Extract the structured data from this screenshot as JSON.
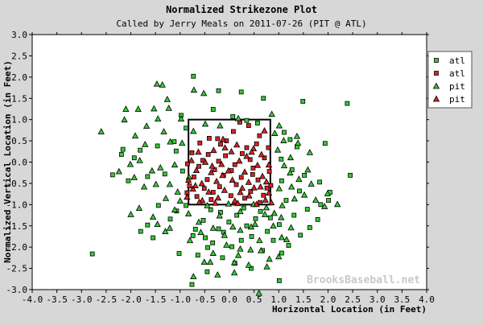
{
  "chart_data": {
    "type": "scatter",
    "title": "Normalized Strikezone Plot",
    "subtitle": "Called by Jerry Meals on 2011-07-26 (PIT @ ATL)",
    "xlabel": "Horizontal Location (in Feet)",
    "ylabel": "Normalized Vertical Location (in Feet)",
    "xlim": [
      -4.0,
      4.0
    ],
    "ylim": [
      -3.0,
      3.0
    ],
    "x_ticks": [
      "-4.0",
      "-3.5",
      "-3.0",
      "-2.5",
      "-2.0",
      "-1.5",
      "-1.0",
      "-0.5",
      "0.0",
      "0.5",
      "1.0",
      "1.5",
      "2.0",
      "2.5",
      "3.0",
      "3.5",
      "4.0"
    ],
    "y_ticks": [
      "3.0",
      "2.5",
      "2.0",
      "1.5",
      "1.0",
      "0.5",
      "0.0",
      "-0.5",
      "-1.0",
      "-1.5",
      "-2.0",
      "-2.5",
      "-3.0"
    ],
    "grid": false,
    "legend_position": "top-right",
    "watermark": "BrooksBaseball.net",
    "strike_zone": {
      "x": [
        -0.83,
        0.83
      ],
      "y": [
        -1.0,
        1.0
      ]
    },
    "colors": {
      "green": "#33cc33",
      "red": "#dd2222",
      "edge": "#000000",
      "plot_bg": "#ffffff",
      "page_bg": "#d7d7d7"
    },
    "series": [
      {
        "name": "atl",
        "marker": "square",
        "color": "#33cc33",
        "points": [
          [
            -0.73,
            2.02
          ],
          [
            -0.22,
            1.68
          ],
          [
            0.24,
            1.65
          ],
          [
            0.69,
            1.5
          ],
          [
            1.49,
            1.43
          ],
          [
            2.39,
            1.38
          ],
          [
            -0.98,
            1.1
          ],
          [
            -0.33,
            1.24
          ],
          [
            0.07,
            1.07
          ],
          [
            0.35,
            0.98
          ],
          [
            0.57,
            0.92
          ],
          [
            1.11,
            0.7
          ],
          [
            1.23,
            0.53
          ],
          [
            1.37,
            0.36
          ],
          [
            1.94,
            0.44
          ],
          [
            -1.46,
            0.38
          ],
          [
            -1.81,
            0.28
          ],
          [
            -2.16,
            0.3
          ],
          [
            -1.12,
            0.48
          ],
          [
            -0.88,
            0.8
          ],
          [
            -1.08,
            0.26
          ],
          [
            -0.95,
            -0.21
          ],
          [
            -1.31,
            -0.28
          ],
          [
            -1.66,
            -0.34
          ],
          [
            -2.05,
            -0.44
          ],
          [
            -2.37,
            -0.3
          ],
          [
            -1.93,
            0.1
          ],
          [
            -2.19,
            0.18
          ],
          [
            1.05,
            0.07
          ],
          [
            1.27,
            -0.18
          ],
          [
            1.52,
            -0.31
          ],
          [
            1.83,
            -0.47
          ],
          [
            2.04,
            -0.71
          ],
          [
            2.45,
            -0.31
          ],
          [
            1.42,
            -0.68
          ],
          [
            1.06,
            -0.44
          ],
          [
            1.15,
            -0.9
          ],
          [
            1.31,
            -1.25
          ],
          [
            1.58,
            -1.11
          ],
          [
            1.85,
            -1.0
          ],
          [
            2.01,
            -0.9
          ],
          [
            1.79,
            -1.35
          ],
          [
            1.63,
            -1.54
          ],
          [
            1.44,
            -1.72
          ],
          [
            1.2,
            -1.96
          ],
          [
            1.06,
            -2.14
          ],
          [
            0.77,
            -1.63
          ],
          [
            0.63,
            -1.16
          ],
          [
            0.53,
            -1.33
          ],
          [
            0.35,
            -1.5
          ],
          [
            0.15,
            -1.25
          ],
          [
            -0.01,
            -1.41
          ],
          [
            -0.18,
            -1.18
          ],
          [
            -0.38,
            -1.12
          ],
          [
            -0.53,
            -1.37
          ],
          [
            -0.69,
            -1.58
          ],
          [
            -0.88,
            -1.02
          ],
          [
            -1.07,
            -1.15
          ],
          [
            -1.2,
            -1.34
          ],
          [
            -1.44,
            -1.02
          ],
          [
            -1.66,
            -1.48
          ],
          [
            -1.8,
            -1.63
          ],
          [
            -0.74,
            -1.73
          ],
          [
            -0.49,
            -1.78
          ],
          [
            -0.34,
            -1.9
          ],
          [
            -0.12,
            -1.65
          ],
          [
            0.05,
            -1.99
          ],
          [
            0.24,
            -1.84
          ],
          [
            0.45,
            -1.75
          ],
          [
            0.67,
            -2.08
          ],
          [
            0.89,
            -1.84
          ],
          [
            1.01,
            -1.47
          ],
          [
            0.83,
            -1.31
          ],
          [
            0.29,
            -1.08
          ],
          [
            -0.22,
            -1.57
          ],
          [
            -0.64,
            -2.19
          ],
          [
            -0.45,
            -2.58
          ],
          [
            -0.14,
            -2.25
          ],
          [
            0.11,
            -2.38
          ],
          [
            0.44,
            -2.5
          ],
          [
            1.01,
            -2.79
          ],
          [
            -0.76,
            -2.88
          ],
          [
            -2.78,
            -2.16
          ],
          [
            -1.55,
            -1.78
          ],
          [
            -1.02,
            -2.15
          ],
          [
            -0.44,
            -2.01
          ]
        ]
      },
      {
        "name": "atl",
        "marker": "square",
        "color": "#dd2222",
        "points": [
          [
            0.21,
            0.94
          ],
          [
            0.39,
            0.86
          ],
          [
            0.61,
            0.62
          ],
          [
            -0.41,
            0.56
          ],
          [
            -0.24,
            0.55
          ],
          [
            0.08,
            0.72
          ],
          [
            -0.6,
            0.45
          ],
          [
            -0.18,
            0.42
          ],
          [
            0.35,
            0.34
          ],
          [
            0.79,
            0.34
          ],
          [
            -0.76,
            0.22
          ],
          [
            -0.43,
            0.18
          ],
          [
            -0.08,
            0.15
          ],
          [
            0.42,
            0.06
          ],
          [
            0.71,
            0.1
          ],
          [
            -0.85,
            -0.04
          ],
          [
            -0.62,
            -0.1
          ],
          [
            -0.22,
            0.02
          ],
          [
            0.11,
            -0.06
          ],
          [
            0.48,
            -0.14
          ],
          [
            0.81,
            -0.22
          ],
          [
            -0.72,
            -0.35
          ],
          [
            -0.45,
            -0.41
          ],
          [
            -0.12,
            -0.31
          ],
          [
            0.24,
            -0.36
          ],
          [
            0.58,
            -0.42
          ],
          [
            -0.81,
            -0.56
          ],
          [
            -0.51,
            -0.62
          ],
          [
            -0.2,
            -0.58
          ],
          [
            0.14,
            -0.53
          ],
          [
            0.43,
            -0.69
          ],
          [
            0.69,
            -0.78
          ],
          [
            -0.66,
            -0.81
          ],
          [
            -0.37,
            -0.88
          ],
          [
            0.03,
            -0.79
          ],
          [
            0.31,
            -0.85
          ],
          [
            0.62,
            -0.95
          ],
          [
            -0.86,
            -0.72
          ],
          [
            0.84,
            -0.55
          ],
          [
            -0.3,
            -0.18
          ],
          [
            0.26,
            0.2
          ],
          [
            -0.54,
            0.04
          ],
          [
            0.55,
            0.43
          ],
          [
            -0.06,
            0.5
          ],
          [
            0.04,
            -0.2
          ],
          [
            -0.33,
            -0.71
          ],
          [
            0.47,
            -0.29
          ],
          [
            0.76,
            -0.61
          ]
        ]
      },
      {
        "name": "pit",
        "marker": "triangle",
        "color": "#33cc33",
        "points": [
          [
            -1.47,
            1.84
          ],
          [
            -1.36,
            1.82
          ],
          [
            -0.72,
            1.7
          ],
          [
            -1.26,
            1.48
          ],
          [
            -2.1,
            1.25
          ],
          [
            -1.85,
            1.25
          ],
          [
            -1.53,
            1.26
          ],
          [
            -2.13,
            1.0
          ],
          [
            -2.6,
            0.72
          ],
          [
            -1.68,
            0.85
          ],
          [
            -1.45,
            1.02
          ],
          [
            -1.33,
            0.72
          ],
          [
            -1.2,
            0.48
          ],
          [
            -1.91,
            0.62
          ],
          [
            -1.71,
            0.42
          ],
          [
            -2.01,
            -0.05
          ],
          [
            -1.82,
            0.04
          ],
          [
            -1.57,
            -0.2
          ],
          [
            -1.4,
            -0.13
          ],
          [
            -1.11,
            -0.06
          ],
          [
            -1.21,
            -0.52
          ],
          [
            -1.49,
            -0.52
          ],
          [
            -1.93,
            -0.36
          ],
          [
            -2.24,
            -0.22
          ],
          [
            -1.73,
            -0.58
          ],
          [
            -1.05,
            -0.7
          ],
          [
            -1.29,
            -0.85
          ],
          [
            -1.0,
            -0.91
          ],
          [
            -1.11,
            -1.12
          ],
          [
            -1.55,
            -1.29
          ],
          [
            -1.83,
            -1.08
          ],
          [
            -2.0,
            -1.23
          ],
          [
            -1.46,
            -1.46
          ],
          [
            -1.21,
            -1.55
          ],
          [
            -0.83,
            -1.21
          ],
          [
            -0.58,
            -1.65
          ],
          [
            -0.8,
            -1.84
          ],
          [
            -0.33,
            -1.55
          ],
          [
            -0.1,
            -1.72
          ],
          [
            0.07,
            -1.52
          ],
          [
            0.22,
            -1.6
          ],
          [
            0.44,
            -1.52
          ],
          [
            0.61,
            -1.84
          ],
          [
            0.43,
            -2.06
          ],
          [
            0.18,
            -2.19
          ],
          [
            -0.06,
            -1.95
          ],
          [
            -0.33,
            -2.14
          ],
          [
            -0.51,
            -2.35
          ],
          [
            -0.24,
            -2.65
          ],
          [
            0.1,
            -2.6
          ],
          [
            0.39,
            -2.42
          ],
          [
            0.76,
            -2.46
          ],
          [
            0.64,
            -2.08
          ],
          [
            0.81,
            -2.28
          ],
          [
            1.0,
            -2.22
          ],
          [
            1.16,
            -1.82
          ],
          [
            0.89,
            -1.5
          ],
          [
            1.05,
            -1.3
          ],
          [
            1.25,
            -1.54
          ],
          [
            0.91,
            -1.2
          ],
          [
            0.75,
            -1.07
          ],
          [
            0.49,
            -0.99
          ],
          [
            0.22,
            -1.16
          ],
          [
            -0.02,
            -0.98
          ],
          [
            -0.2,
            -1.26
          ],
          [
            -0.45,
            -1.02
          ],
          [
            -0.62,
            -1.41
          ],
          [
            0.52,
            -1.46
          ],
          [
            0.72,
            -1.23
          ],
          [
            1.07,
            -1.02
          ],
          [
            1.32,
            -0.86
          ],
          [
            1.52,
            -0.77
          ],
          [
            1.75,
            -0.89
          ],
          [
            1.93,
            -1.04
          ],
          [
            2.19,
            -0.99
          ],
          [
            1.99,
            -0.74
          ],
          [
            1.66,
            -0.51
          ],
          [
            1.41,
            -0.4
          ],
          [
            1.59,
            -0.18
          ],
          [
            1.23,
            -0.25
          ],
          [
            1.11,
            -0.08
          ],
          [
            1.24,
            0.11
          ],
          [
            0.98,
            0.29
          ],
          [
            1.1,
            0.51
          ],
          [
            1.39,
            0.45
          ],
          [
            1.63,
            0.23
          ],
          [
            1.37,
            0.61
          ],
          [
            0.92,
            0.68
          ],
          [
            1.01,
            0.86
          ],
          [
            0.86,
            1.13
          ],
          [
            0.18,
            1.03
          ],
          [
            -0.19,
            0.86
          ],
          [
            -0.49,
            0.9
          ],
          [
            -0.73,
            0.73
          ],
          [
            -0.98,
            1.02
          ],
          [
            -1.23,
            1.27
          ],
          [
            -0.52,
            1.62
          ],
          [
            -0.96,
            0.45
          ],
          [
            -0.82,
            -0.35
          ],
          [
            1.01,
            -0.62
          ],
          [
            1.26,
            -0.58
          ],
          [
            -0.73,
            -2.69
          ],
          [
            0.6,
            -3.08
          ],
          [
            -0.39,
            -2.35
          ],
          [
            0.1,
            -2.36
          ],
          [
            0.22,
            -2.04
          ],
          [
            1.06,
            -1.77
          ],
          [
            -1.3,
            -1.63
          ]
        ]
      },
      {
        "name": "pit",
        "marker": "triangle",
        "color": "#dd2222",
        "points": [
          [
            0.71,
            0.74
          ],
          [
            -0.13,
            0.54
          ],
          [
            0.15,
            0.41
          ],
          [
            0.49,
            0.32
          ],
          [
            -0.63,
            0.24
          ],
          [
            -0.32,
            0.28
          ],
          [
            0.04,
            0.25
          ],
          [
            0.35,
            0.14
          ],
          [
            0.65,
            0.18
          ],
          [
            -0.77,
            0.04
          ],
          [
            -0.49,
            0.0
          ],
          [
            -0.16,
            -0.05
          ],
          [
            0.2,
            0.03
          ],
          [
            0.57,
            -0.07
          ],
          [
            0.8,
            -0.06
          ],
          [
            -0.67,
            -0.19
          ],
          [
            -0.37,
            -0.24
          ],
          [
            -0.02,
            -0.2
          ],
          [
            0.31,
            -0.23
          ],
          [
            0.67,
            -0.33
          ],
          [
            -0.83,
            -0.42
          ],
          [
            -0.56,
            -0.5
          ],
          [
            -0.26,
            -0.45
          ],
          [
            0.06,
            -0.42
          ],
          [
            0.39,
            -0.47
          ],
          [
            0.75,
            -0.46
          ],
          [
            -0.74,
            -0.63
          ],
          [
            -0.42,
            -0.7
          ],
          [
            -0.1,
            -0.66
          ],
          [
            0.22,
            -0.71
          ],
          [
            0.5,
            -0.6
          ],
          [
            0.8,
            -0.72
          ],
          [
            -0.86,
            -0.82
          ],
          [
            -0.55,
            -0.9
          ],
          [
            -0.23,
            -0.84
          ],
          [
            0.11,
            -0.91
          ],
          [
            0.4,
            -0.79
          ],
          [
            0.73,
            -0.89
          ],
          [
            -0.61,
            -0.94
          ],
          [
            -0.29,
            -0.96
          ],
          [
            0.17,
            -0.97
          ],
          [
            0.55,
            -0.99
          ],
          [
            0.85,
            -0.95
          ],
          [
            -0.35,
            -0.09
          ],
          [
            0.45,
            0.24
          ],
          [
            -0.09,
            0.34
          ],
          [
            0.26,
            -0.61
          ],
          [
            -0.69,
            -0.55
          ],
          [
            0.63,
            -0.58
          ],
          [
            -0.14,
            -0.31
          ]
        ]
      }
    ]
  }
}
